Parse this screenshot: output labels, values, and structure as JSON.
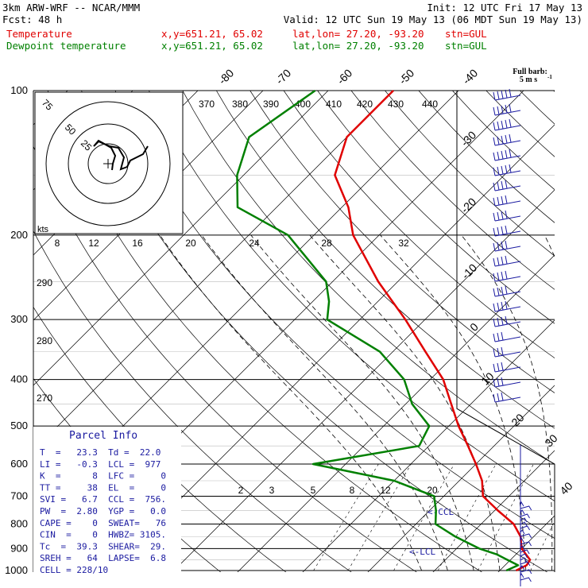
{
  "header": {
    "model": "3km ARW-WRF -- NCAR/MMM",
    "init": "Init: 12 UTC Fri 17 May 13",
    "fcst": "Fcst:   48 h",
    "valid": "Valid: 12 UTC Sun 19 May 13 (06 MDT Sun 19 May 13)",
    "temp_line": {
      "label": "Temperature",
      "xy": "x,y=651.21, 65.02",
      "latlon": "lat,lon= 27.20, -93.20",
      "stn": "stn=GUL"
    },
    "dew_line": {
      "label": "Dewpoint temperature",
      "xy": "x,y=651.21, 65.02",
      "latlon": "lat,lon= 27.20, -93.20",
      "stn": "stn=GUL"
    }
  },
  "colors": {
    "temperature": "#e00000",
    "dewpoint": "#008000",
    "parcel_info": "#1a1aa0",
    "wind_barbs": "#1a1aa0",
    "parcel_path": "#e00000"
  },
  "wind_legend": {
    "title": "Full barb:",
    "value": "5 m s"
  },
  "hodograph": {
    "ring_labels": [
      "50",
      "25",
      "75"
    ],
    "units_label": "kts"
  },
  "parcel_info": {
    "title": "Parcel Info",
    "rows": [
      "T  =   23.3  Td =  22.0",
      "LI =   -0.3  LCL =  977",
      "K  =      8  LFC =     0",
      "TT =     38  EL  =     0",
      "SVI =   6.7  CCL =  756.",
      "PW  =  2.80  YGP =   0.0",
      "CAPE =    0  SWEAT=   76",
      "CIN  =    0  HWBZ= 3105.",
      "Tc  =  39.3  SHEAR=  29.",
      "SREH =   64  LAPSE=  6.8",
      "CELL = 228/10"
    ]
  },
  "annotations": {
    "ccl": "<-CCL",
    "lcl": "<-LCL"
  },
  "chart_data": {
    "type": "skew-t",
    "xlabel": "",
    "ylabel": "",
    "pressure_levels": [
      100,
      200,
      300,
      400,
      500,
      600,
      700,
      800,
      900,
      1000
    ],
    "isotherm_labels": [
      -80,
      -70,
      -60,
      -50,
      -40,
      -30,
      -20,
      -10,
      0,
      10,
      20,
      30,
      40
    ],
    "theta_labels": [
      370,
      380,
      390,
      400,
      410,
      420,
      430,
      440
    ],
    "theta_left_labels": [
      290,
      280,
      270
    ],
    "mixing_ratio_labels": [
      8,
      12,
      16,
      20,
      24,
      28,
      32
    ],
    "mixing_ratio_low_labels": [
      2,
      3,
      5,
      8,
      12,
      20
    ],
    "series": [
      {
        "name": "Temperature",
        "points": [
          {
            "p": 1000,
            "t": 22.5
          },
          {
            "p": 975,
            "t": 23.3
          },
          {
            "p": 950,
            "t": 23.0
          },
          {
            "p": 925,
            "t": 21.5
          },
          {
            "p": 900,
            "t": 20.0
          },
          {
            "p": 875,
            "t": 19.0
          },
          {
            "p": 850,
            "t": 18.0
          },
          {
            "p": 800,
            "t": 15.0
          },
          {
            "p": 750,
            "t": 10.5
          },
          {
            "p": 700,
            "t": 6.0
          },
          {
            "p": 650,
            "t": 3.5
          },
          {
            "p": 600,
            "t": 0.0
          },
          {
            "p": 550,
            "t": -4.0
          },
          {
            "p": 500,
            "t": -8.5
          },
          {
            "p": 450,
            "t": -13.0
          },
          {
            "p": 400,
            "t": -18.0
          },
          {
            "p": 350,
            "t": -25.0
          },
          {
            "p": 300,
            "t": -33.0
          },
          {
            "p": 250,
            "t": -43.0
          },
          {
            "p": 200,
            "t": -54.0
          },
          {
            "p": 175,
            "t": -59.0
          },
          {
            "p": 150,
            "t": -66.0
          },
          {
            "p": 125,
            "t": -70.0
          },
          {
            "p": 100,
            "t": -70.0
          }
        ]
      },
      {
        "name": "Dewpoint temperature",
        "points": [
          {
            "p": 1000,
            "t": 21.0
          },
          {
            "p": 975,
            "t": 22.0
          },
          {
            "p": 950,
            "t": 19.5
          },
          {
            "p": 925,
            "t": 17.0
          },
          {
            "p": 900,
            "t": 13.5
          },
          {
            "p": 850,
            "t": 8.0
          },
          {
            "p": 800,
            "t": 3.0
          },
          {
            "p": 750,
            "t": 1.0
          },
          {
            "p": 700,
            "t": -1.5
          },
          {
            "p": 650,
            "t": -10.0
          },
          {
            "p": 600,
            "t": -25.0
          },
          {
            "p": 550,
            "t": -11.5
          },
          {
            "p": 500,
            "t": -13.0
          },
          {
            "p": 450,
            "t": -19.0
          },
          {
            "p": 400,
            "t": -24.0
          },
          {
            "p": 350,
            "t": -32.0
          },
          {
            "p": 300,
            "t": -45.0
          },
          {
            "p": 275,
            "t": -47.5
          },
          {
            "p": 250,
            "t": -51.0
          },
          {
            "p": 200,
            "t": -64.0
          },
          {
            "p": 175,
            "t": -76.0
          },
          {
            "p": 150,
            "t": -81.0
          },
          {
            "p": 125,
            "t": -85.0
          },
          {
            "p": 100,
            "t": -82.0
          }
        ]
      }
    ]
  }
}
